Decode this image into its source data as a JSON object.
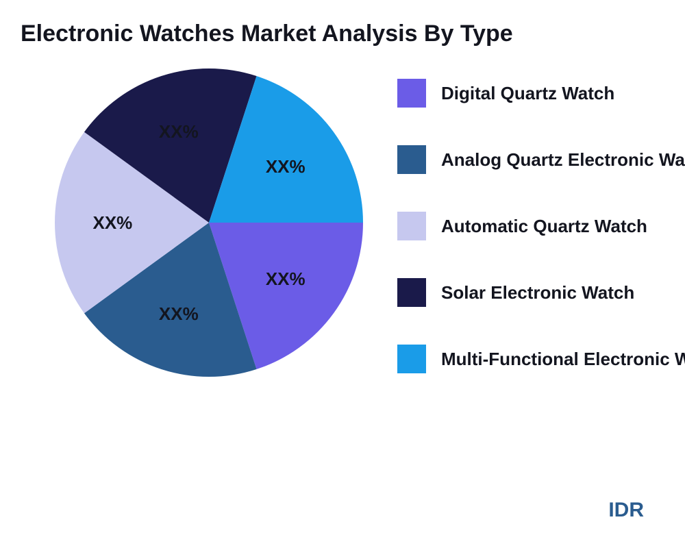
{
  "title": "Electronic Watches Market Analysis By Type",
  "title_fontsize": 34,
  "chart": {
    "type": "pie",
    "background_color": "#ffffff",
    "slices": [
      {
        "label": "Digital Quartz Watch",
        "value": 20,
        "color": "#6b5ce7",
        "display": "XX%"
      },
      {
        "label": "Analog Quartz Electronic Watch",
        "value": 20,
        "color": "#2a5c8f",
        "display": "XX%"
      },
      {
        "label": "Automatic Quartz Watch",
        "value": 20,
        "color": "#c6c8ef",
        "display": "XX%"
      },
      {
        "label": "Solar Electronic Watch",
        "value": 20,
        "color": "#1a1a4a",
        "display": "XX%"
      },
      {
        "label": "Multi-Functional Electronic Watch",
        "value": 20,
        "color": "#1a9ce8",
        "display": "XX%"
      }
    ],
    "slice_label_fontsize": 26,
    "slice_label_color": "#13151f",
    "start_angle": 0,
    "radius": 225
  },
  "legend": {
    "items": [
      {
        "label": "Digital Quartz Watch",
        "color": "#6b5ce7"
      },
      {
        "label": "Analog Quartz Electronic Watch",
        "color": "#2a5c8f"
      },
      {
        "label": "Automatic Quartz Watch",
        "color": "#c6c8ef"
      },
      {
        "label": "Solar Electronic Watch",
        "color": "#1a1a4a"
      },
      {
        "label": "Multi-Functional Electronic Watch",
        "color": "#1a9ce8"
      }
    ],
    "label_fontsize": 26,
    "label_color": "#13151f",
    "swatch_size": 42
  },
  "footer": {
    "text": "IDR",
    "fontsize": 30,
    "color": "#2a5c8f"
  }
}
